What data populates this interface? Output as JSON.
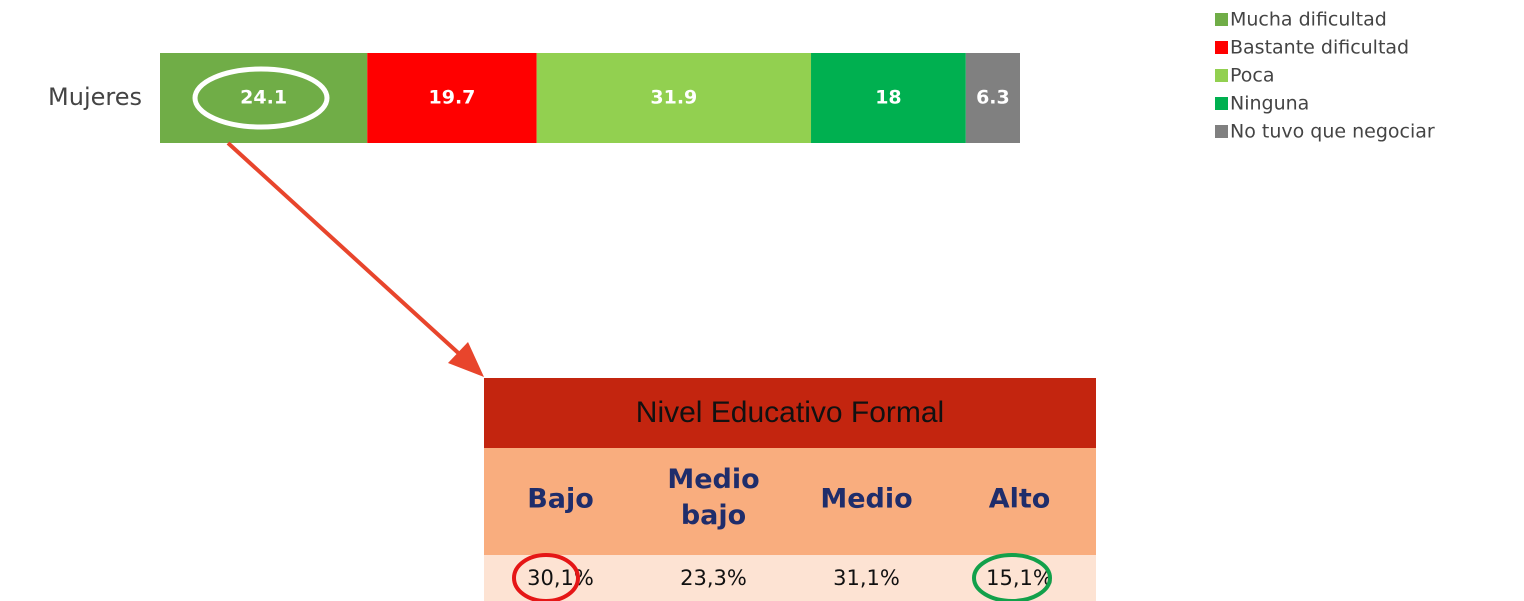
{
  "chart_data": {
    "type": "bar",
    "orientation": "horizontal",
    "stacked": true,
    "categories": [
      "Mujeres"
    ],
    "series": [
      {
        "name": "Mucha dificultad",
        "color": "#70ad47",
        "values": [
          24.1
        ]
      },
      {
        "name": "Bastante dificultad",
        "color": "#ff0000",
        "values": [
          19.7
        ]
      },
      {
        "name": "Poca",
        "color": "#92d050",
        "values": [
          31.9
        ]
      },
      {
        "name": "Ninguna",
        "color": "#00b050",
        "values": [
          18
        ]
      },
      {
        "name": "No tuvo que negociar",
        "color": "#808080",
        "values": [
          6.3
        ]
      }
    ],
    "xlim": [
      0,
      100
    ],
    "legend": "upper right"
  },
  "table": {
    "title": "Nivel Educativo Formal",
    "columns": [
      "Bajo",
      "Medio bajo",
      "Medio",
      "Alto"
    ],
    "rows": [
      [
        "30,1%",
        "23,3%",
        "31,1%",
        "15,1%"
      ]
    ]
  }
}
